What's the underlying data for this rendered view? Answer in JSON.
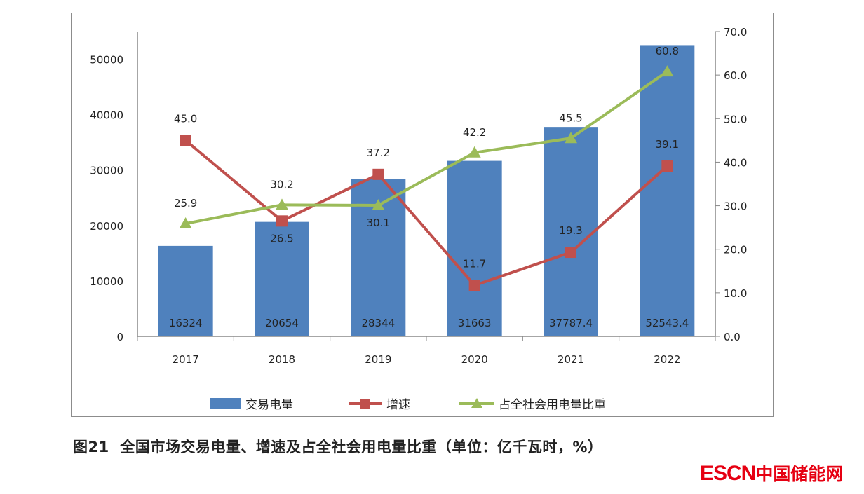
{
  "chart_data": {
    "type": "bar+line",
    "categories": [
      "2017",
      "2018",
      "2019",
      "2020",
      "2021",
      "2022"
    ],
    "series": [
      {
        "name": "交易电量",
        "type": "bar",
        "axis": "left",
        "color": "#4f81bd",
        "values": [
          16324,
          20654,
          28344,
          31663,
          37787.4,
          52543.4
        ],
        "labels": [
          "16324",
          "20654",
          "28344",
          "31663",
          "37787.4",
          "52543.4"
        ]
      },
      {
        "name": "增速",
        "type": "line",
        "axis": "right",
        "color": "#c0504d",
        "marker": "square",
        "values": [
          45.0,
          26.5,
          37.2,
          11.7,
          19.3,
          39.1
        ],
        "labels": [
          "45.0",
          "26.5",
          "37.2",
          "11.7",
          "19.3",
          "39.1"
        ]
      },
      {
        "name": "占全社会用电量比重",
        "type": "line",
        "axis": "right",
        "color": "#9bbb59",
        "marker": "triangle",
        "values": [
          25.9,
          30.2,
          30.1,
          42.2,
          45.5,
          60.8
        ],
        "labels": [
          "25.9",
          "30.2",
          "30.1",
          "42.2",
          "45.5",
          "60.8"
        ]
      }
    ],
    "left_axis": {
      "ylim": [
        0,
        55000
      ],
      "ticks": [
        "0",
        "10000",
        "20000",
        "30000",
        "40000",
        "50000"
      ]
    },
    "right_axis": {
      "ylim": [
        0,
        70
      ],
      "ticks": [
        "0.0",
        "10.0",
        "20.0",
        "30.0",
        "40.0",
        "50.0",
        "60.0",
        "70.0"
      ]
    },
    "grid": false,
    "legend": "bottom"
  },
  "caption": "图21  全国市场交易电量、增速及占全社会用电量比重（单位：亿千瓦时，%）",
  "logo": {
    "en": "ESCN",
    "cn": "中国储能网"
  }
}
